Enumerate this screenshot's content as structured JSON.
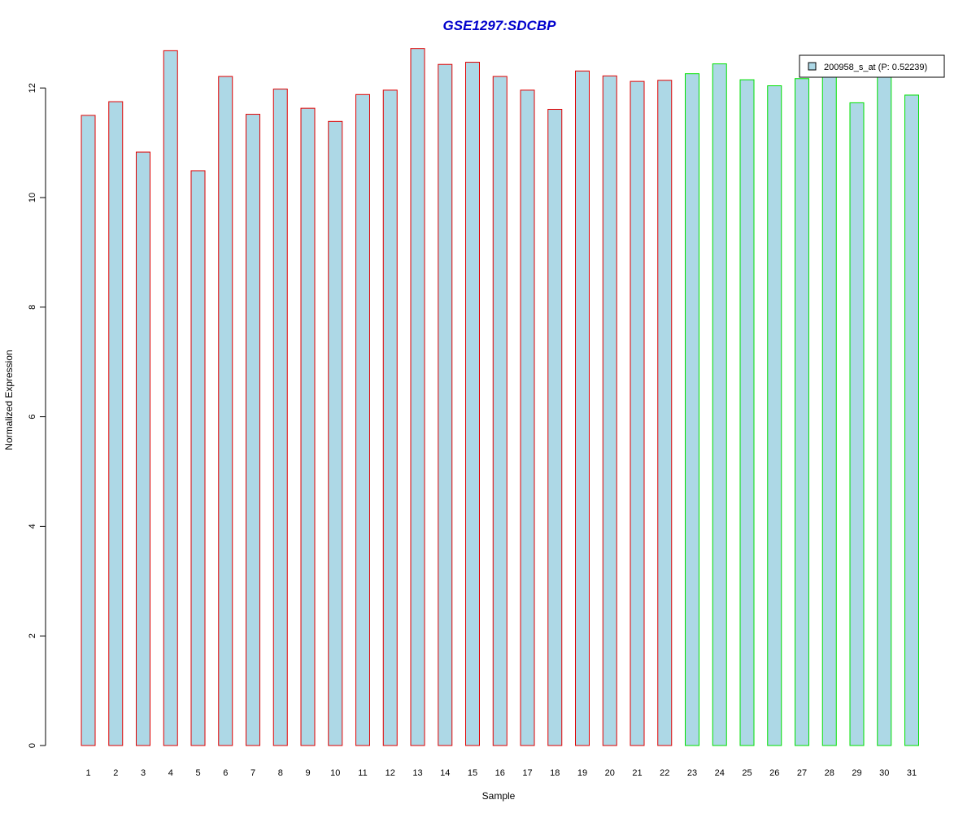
{
  "chart_data": {
    "type": "bar",
    "title": "GSE1297:SDCBP",
    "xlabel": "Sample",
    "ylabel": "Normalized Expression",
    "ylim": [
      0,
      12.8
    ],
    "yticks": [
      0,
      2,
      4,
      6,
      8,
      10,
      12
    ],
    "grid": false,
    "legend_position": "top-right",
    "categories": [
      "1",
      "2",
      "3",
      "4",
      "5",
      "6",
      "7",
      "8",
      "9",
      "10",
      "11",
      "12",
      "13",
      "14",
      "15",
      "16",
      "17",
      "18",
      "19",
      "20",
      "21",
      "22",
      "23",
      "24",
      "25",
      "26",
      "27",
      "28",
      "29",
      "30",
      "31"
    ],
    "series": [
      {
        "name": "200958_s_at (P: 0.52239)",
        "values": [
          11.5,
          11.75,
          10.83,
          12.68,
          10.49,
          12.21,
          11.52,
          11.98,
          11.63,
          11.39,
          11.88,
          11.96,
          12.72,
          12.43,
          12.47,
          12.21,
          11.96,
          11.61,
          12.31,
          12.22,
          12.12,
          12.14,
          12.26,
          12.44,
          12.15,
          12.04,
          12.17,
          12.25,
          11.73,
          12.24,
          11.87
        ]
      }
    ],
    "group_sizes": [
      22,
      9
    ],
    "colors": {
      "title": "#0000cc",
      "bar_fill": "#add8e6",
      "group1_border": "#e00000",
      "group2_border": "#00e000",
      "axis": "#000000"
    }
  }
}
